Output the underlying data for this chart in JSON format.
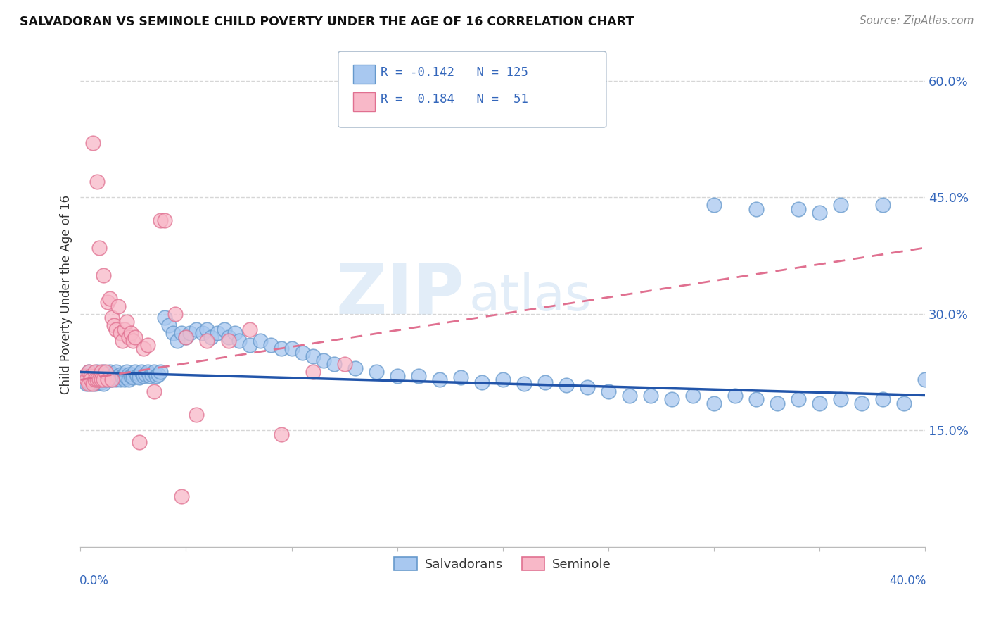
{
  "title": "SALVADORAN VS SEMINOLE CHILD POVERTY UNDER THE AGE OF 16 CORRELATION CHART",
  "source": "Source: ZipAtlas.com",
  "ylabel": "Child Poverty Under the Age of 16",
  "yticks": [
    "15.0%",
    "30.0%",
    "45.0%",
    "60.0%"
  ],
  "ytick_vals": [
    0.15,
    0.3,
    0.45,
    0.6
  ],
  "xlim": [
    0.0,
    0.4
  ],
  "ylim": [
    0.0,
    0.65
  ],
  "color_salvadoran_face": "#A8C8F0",
  "color_salvadoran_edge": "#6699CC",
  "color_seminole_face": "#F8B8C8",
  "color_seminole_edge": "#E07090",
  "color_line_salvadoran": "#2255AA",
  "color_line_seminole": "#E07090",
  "background_color": "#FFFFFF",
  "watermark_zip": "ZIP",
  "watermark_atlas": "atlas",
  "sal_line_y0": 0.225,
  "sal_line_y1": 0.195,
  "sem_line_y0": 0.215,
  "sem_line_y1": 0.385,
  "salvadoran_x": [
    0.002,
    0.003,
    0.003,
    0.004,
    0.004,
    0.005,
    0.005,
    0.005,
    0.006,
    0.006,
    0.006,
    0.007,
    0.007,
    0.007,
    0.008,
    0.008,
    0.008,
    0.009,
    0.009,
    0.01,
    0.01,
    0.01,
    0.011,
    0.011,
    0.011,
    0.012,
    0.012,
    0.013,
    0.013,
    0.014,
    0.014,
    0.015,
    0.015,
    0.016,
    0.016,
    0.017,
    0.017,
    0.018,
    0.018,
    0.019,
    0.019,
    0.02,
    0.02,
    0.021,
    0.021,
    0.022,
    0.022,
    0.023,
    0.023,
    0.024,
    0.025,
    0.025,
    0.026,
    0.027,
    0.028,
    0.028,
    0.029,
    0.03,
    0.031,
    0.032,
    0.033,
    0.034,
    0.035,
    0.036,
    0.037,
    0.038,
    0.04,
    0.042,
    0.044,
    0.046,
    0.048,
    0.05,
    0.052,
    0.055,
    0.058,
    0.06,
    0.062,
    0.065,
    0.068,
    0.07,
    0.073,
    0.075,
    0.08,
    0.085,
    0.09,
    0.095,
    0.1,
    0.105,
    0.11,
    0.115,
    0.12,
    0.13,
    0.14,
    0.15,
    0.16,
    0.17,
    0.18,
    0.19,
    0.2,
    0.21,
    0.22,
    0.23,
    0.24,
    0.25,
    0.26,
    0.27,
    0.28,
    0.29,
    0.3,
    0.31,
    0.32,
    0.33,
    0.34,
    0.35,
    0.36,
    0.37,
    0.38,
    0.39,
    0.4,
    0.34,
    0.36,
    0.32,
    0.38,
    0.35,
    0.3
  ],
  "salvadoran_y": [
    0.215,
    0.22,
    0.21,
    0.225,
    0.215,
    0.22,
    0.215,
    0.21,
    0.222,
    0.218,
    0.212,
    0.22,
    0.215,
    0.21,
    0.225,
    0.218,
    0.212,
    0.22,
    0.215,
    0.222,
    0.218,
    0.212,
    0.225,
    0.215,
    0.21,
    0.22,
    0.215,
    0.222,
    0.218,
    0.225,
    0.215,
    0.22,
    0.215,
    0.222,
    0.218,
    0.225,
    0.215,
    0.22,
    0.218,
    0.222,
    0.215,
    0.22,
    0.218,
    0.222,
    0.215,
    0.225,
    0.218,
    0.222,
    0.215,
    0.22,
    0.222,
    0.218,
    0.225,
    0.22,
    0.222,
    0.218,
    0.225,
    0.22,
    0.222,
    0.225,
    0.22,
    0.222,
    0.225,
    0.22,
    0.222,
    0.225,
    0.295,
    0.285,
    0.275,
    0.265,
    0.275,
    0.27,
    0.275,
    0.28,
    0.275,
    0.28,
    0.27,
    0.275,
    0.28,
    0.27,
    0.275,
    0.265,
    0.26,
    0.265,
    0.26,
    0.255,
    0.255,
    0.25,
    0.245,
    0.24,
    0.235,
    0.23,
    0.225,
    0.22,
    0.22,
    0.215,
    0.218,
    0.212,
    0.215,
    0.21,
    0.212,
    0.208,
    0.205,
    0.2,
    0.195,
    0.195,
    0.19,
    0.195,
    0.185,
    0.195,
    0.19,
    0.185,
    0.19,
    0.185,
    0.19,
    0.185,
    0.19,
    0.185,
    0.215,
    0.435,
    0.44,
    0.435,
    0.44,
    0.43,
    0.44
  ],
  "seminole_x": [
    0.002,
    0.003,
    0.004,
    0.004,
    0.005,
    0.005,
    0.006,
    0.006,
    0.007,
    0.007,
    0.008,
    0.008,
    0.009,
    0.009,
    0.01,
    0.01,
    0.011,
    0.011,
    0.012,
    0.013,
    0.013,
    0.014,
    0.015,
    0.015,
    0.016,
    0.017,
    0.018,
    0.019,
    0.02,
    0.021,
    0.022,
    0.023,
    0.024,
    0.025,
    0.026,
    0.028,
    0.03,
    0.032,
    0.035,
    0.038,
    0.04,
    0.045,
    0.048,
    0.05,
    0.055,
    0.06,
    0.07,
    0.08,
    0.095,
    0.11,
    0.125
  ],
  "seminole_y": [
    0.22,
    0.215,
    0.225,
    0.21,
    0.22,
    0.215,
    0.52,
    0.21,
    0.225,
    0.215,
    0.47,
    0.215,
    0.385,
    0.215,
    0.225,
    0.215,
    0.35,
    0.215,
    0.225,
    0.315,
    0.215,
    0.32,
    0.295,
    0.215,
    0.285,
    0.28,
    0.31,
    0.275,
    0.265,
    0.28,
    0.29,
    0.27,
    0.275,
    0.265,
    0.27,
    0.135,
    0.255,
    0.26,
    0.2,
    0.42,
    0.42,
    0.3,
    0.065,
    0.27,
    0.17,
    0.265,
    0.265,
    0.28,
    0.145,
    0.225,
    0.235
  ]
}
